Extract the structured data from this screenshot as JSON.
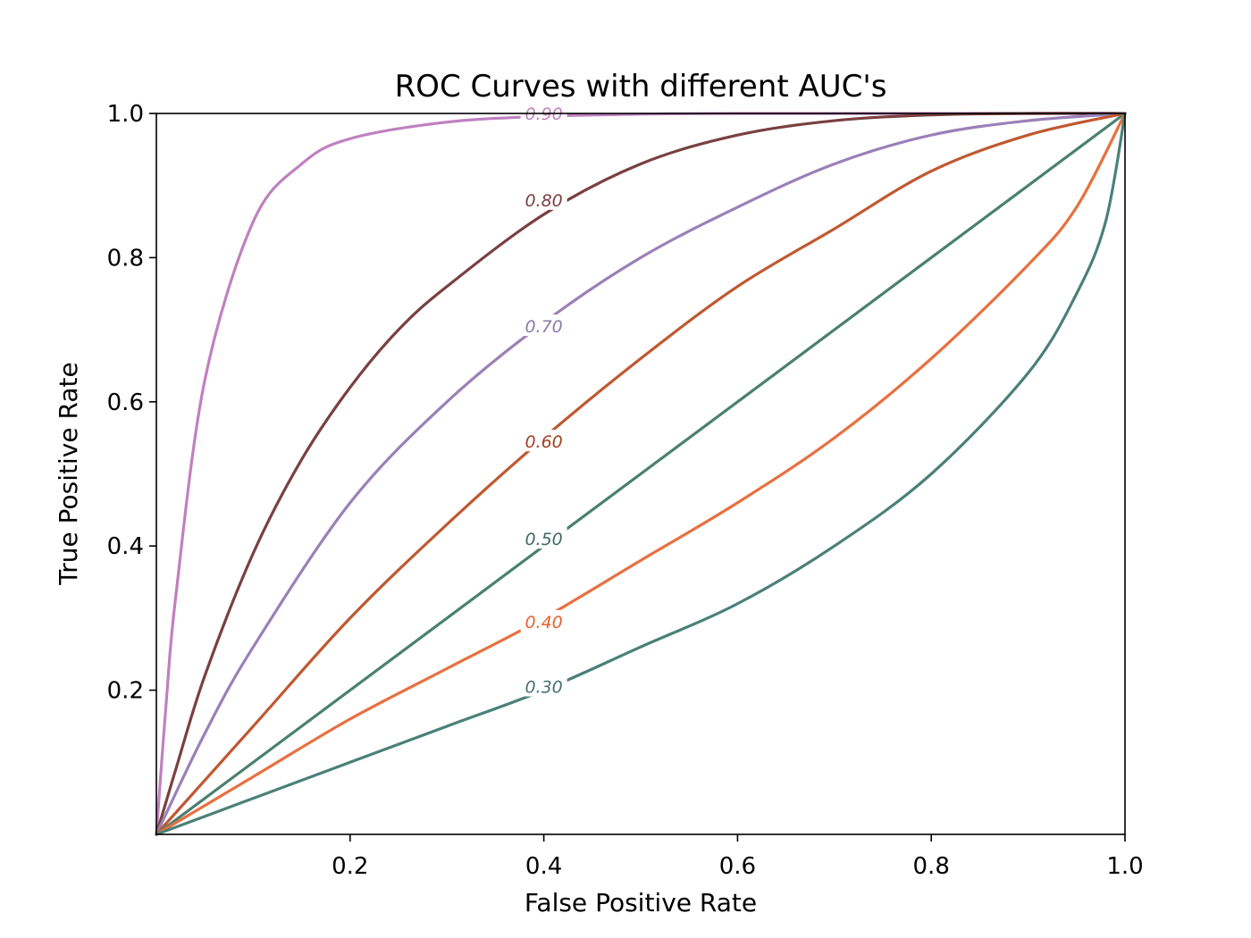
{
  "chart_data": {
    "type": "line",
    "title": "ROC Curves with different AUC's",
    "xlabel": "False Positive Rate",
    "ylabel": "True Positive Rate",
    "xlim": [
      0.0,
      1.0
    ],
    "ylim": [
      0.0,
      1.0
    ],
    "xticks": [
      0.2,
      0.4,
      0.6,
      0.8,
      1.0
    ],
    "xtick_labels": [
      "0.2",
      "0.4",
      "0.6",
      "0.8",
      "1.0"
    ],
    "yticks": [
      0.2,
      0.4,
      0.6,
      0.8,
      1.0
    ],
    "ytick_labels": [
      "0.2",
      "0.4",
      "0.6",
      "0.8",
      "1.0"
    ],
    "grid": false,
    "legend": "none",
    "series": [
      {
        "label": "0.90",
        "color": "#c080c0",
        "x": [
          0,
          0.01,
          0.02,
          0.05,
          0.1,
          0.15,
          0.2,
          0.3,
          0.4,
          0.5,
          0.6,
          0.8,
          1.0
        ],
        "y": [
          0,
          0.18,
          0.33,
          0.63,
          0.85,
          0.93,
          0.965,
          0.988,
          0.996,
          0.999,
          1.0,
          1.0,
          1.0
        ]
      },
      {
        "label": "0.80",
        "color": "#7a4040",
        "x": [
          0,
          0.02,
          0.05,
          0.1,
          0.15,
          0.2,
          0.25,
          0.3,
          0.4,
          0.5,
          0.6,
          0.7,
          0.8,
          0.9,
          1.0
        ],
        "y": [
          0,
          0.09,
          0.22,
          0.39,
          0.52,
          0.62,
          0.7,
          0.76,
          0.86,
          0.93,
          0.97,
          0.99,
          0.998,
          1.0,
          1.0
        ]
      },
      {
        "label": "0.70",
        "color": "#9a80b8",
        "x": [
          0,
          0.05,
          0.1,
          0.2,
          0.3,
          0.4,
          0.5,
          0.6,
          0.7,
          0.8,
          0.9,
          1.0
        ],
        "y": [
          0,
          0.14,
          0.26,
          0.46,
          0.6,
          0.71,
          0.8,
          0.87,
          0.93,
          0.97,
          0.99,
          1.0
        ]
      },
      {
        "label": "0.60",
        "color": "#c05830",
        "x": [
          0,
          0.1,
          0.2,
          0.3,
          0.4,
          0.5,
          0.6,
          0.7,
          0.8,
          0.9,
          1.0
        ],
        "y": [
          0,
          0.15,
          0.3,
          0.43,
          0.55,
          0.66,
          0.76,
          0.84,
          0.92,
          0.97,
          1.0
        ]
      },
      {
        "label": "0.50",
        "color": "#4a8070",
        "x": [
          0,
          1.0
        ],
        "y": [
          0,
          1.0
        ]
      },
      {
        "label": "0.40",
        "color": "#e87040",
        "x": [
          0,
          0.1,
          0.2,
          0.3,
          0.4,
          0.5,
          0.6,
          0.7,
          0.8,
          0.9,
          0.95,
          1.0
        ],
        "y": [
          0,
          0.08,
          0.16,
          0.23,
          0.3,
          0.38,
          0.46,
          0.55,
          0.66,
          0.79,
          0.87,
          1.0
        ]
      },
      {
        "label": "0.30",
        "color": "#4a8078",
        "x": [
          0,
          0.1,
          0.2,
          0.3,
          0.4,
          0.5,
          0.6,
          0.7,
          0.8,
          0.9,
          0.95,
          0.98,
          1.0
        ],
        "y": [
          0,
          0.05,
          0.1,
          0.15,
          0.2,
          0.26,
          0.32,
          0.4,
          0.5,
          0.64,
          0.75,
          0.85,
          1.0
        ]
      }
    ],
    "curve_labels": [
      {
        "text": "0.90",
        "x": 0.4,
        "y": 1.0,
        "color": "#c080c0"
      },
      {
        "text": "0.80",
        "x": 0.4,
        "y": 0.88,
        "color": "#7a4040"
      },
      {
        "text": "0.70",
        "x": 0.4,
        "y": 0.705,
        "color": "#8a7aa8"
      },
      {
        "text": "0.60",
        "x": 0.4,
        "y": 0.545,
        "color": "#a04020"
      },
      {
        "text": "0.50",
        "x": 0.4,
        "y": 0.41,
        "color": "#406860"
      },
      {
        "text": "0.40",
        "x": 0.4,
        "y": 0.295,
        "color": "#e86030"
      },
      {
        "text": "0.30",
        "x": 0.4,
        "y": 0.205,
        "color": "#4a7070"
      }
    ]
  }
}
